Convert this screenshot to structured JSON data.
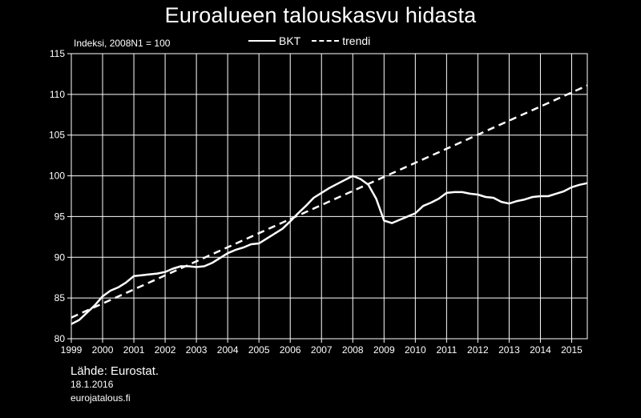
{
  "title": "Euroalueen talouskasvu hidasta",
  "ylabel": "Indeksi, 2008N1 = 100",
  "source": "Lähde: Eurostat.",
  "date": "18.1.2016",
  "site": "eurojatalous.fi",
  "colors": {
    "background": "#000000",
    "line": "#ffffff",
    "grid": "#ffffff"
  },
  "chart_data": {
    "type": "line",
    "title": "Euroalueen talouskasvu hidasta",
    "ylabel": "Indeksi, 2008N1 = 100",
    "xlabel": "",
    "xlim": [
      1999.0,
      2015.5
    ],
    "ylim": [
      80,
      115
    ],
    "yticks": [
      80,
      85,
      90,
      95,
      100,
      105,
      110,
      115
    ],
    "xticks": [
      "1999",
      "2000",
      "2001",
      "2002",
      "2003",
      "2004",
      "2005",
      "2006",
      "2007",
      "2008",
      "2009",
      "2010",
      "2011",
      "2012",
      "2013",
      "2014",
      "2015"
    ],
    "grid": true,
    "legend_position": "top",
    "series": [
      {
        "name": "BKT",
        "style": "solid",
        "x": [
          "1999Q1",
          "1999Q2",
          "1999Q3",
          "1999Q4",
          "2000Q1",
          "2000Q2",
          "2000Q3",
          "2000Q4",
          "2001Q1",
          "2001Q2",
          "2001Q3",
          "2001Q4",
          "2002Q1",
          "2002Q2",
          "2002Q3",
          "2002Q4",
          "2003Q1",
          "2003Q2",
          "2003Q3",
          "2003Q4",
          "2004Q1",
          "2004Q2",
          "2004Q3",
          "2004Q4",
          "2005Q1",
          "2005Q2",
          "2005Q3",
          "2005Q4",
          "2006Q1",
          "2006Q2",
          "2006Q3",
          "2006Q4",
          "2007Q1",
          "2007Q2",
          "2007Q3",
          "2007Q4",
          "2008Q1",
          "2008Q2",
          "2008Q3",
          "2008Q4",
          "2009Q1",
          "2009Q2",
          "2009Q3",
          "2009Q4",
          "2010Q1",
          "2010Q2",
          "2010Q3",
          "2010Q4",
          "2011Q1",
          "2011Q2",
          "2011Q3",
          "2011Q4",
          "2012Q1",
          "2012Q2",
          "2012Q3",
          "2012Q4",
          "2013Q1",
          "2013Q2",
          "2013Q3",
          "2013Q4",
          "2014Q1",
          "2014Q2",
          "2014Q3",
          "2014Q4",
          "2015Q1",
          "2015Q2",
          "2015Q3"
        ],
        "values": [
          81.8,
          82.3,
          83.2,
          84.1,
          85.2,
          85.9,
          86.3,
          86.9,
          87.7,
          87.8,
          87.9,
          88.0,
          88.2,
          88.6,
          88.9,
          88.9,
          88.8,
          88.9,
          89.3,
          89.9,
          90.5,
          90.9,
          91.2,
          91.6,
          91.7,
          92.3,
          92.9,
          93.5,
          94.4,
          95.4,
          96.3,
          97.3,
          97.9,
          98.5,
          99.0,
          99.5,
          100.0,
          99.6,
          98.9,
          97.2,
          94.5,
          94.2,
          94.6,
          95.0,
          95.4,
          96.3,
          96.7,
          97.2,
          97.9,
          98.0,
          98.0,
          97.8,
          97.7,
          97.4,
          97.3,
          96.8,
          96.6,
          96.9,
          97.1,
          97.4,
          97.5,
          97.5,
          97.8,
          98.1,
          98.6,
          98.9,
          99.1
        ]
      },
      {
        "name": "trendi",
        "style": "dashed",
        "x": [
          "1999Q1",
          "2015Q3"
        ],
        "values": [
          82.6,
          111.1
        ]
      }
    ]
  }
}
